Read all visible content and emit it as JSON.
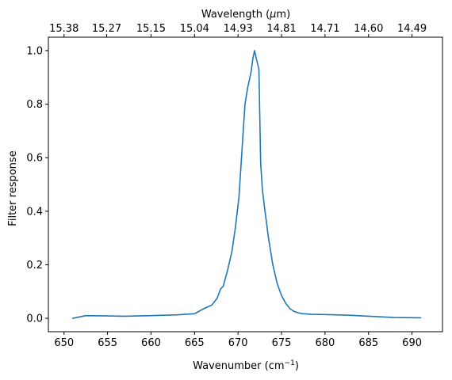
{
  "chart_data": {
    "type": "line",
    "xlabel": "Wavenumber (cm",
    "xlabel_sup": "−1",
    "xlabel_end": ")",
    "ylabel": "Filter response",
    "top_xlabel": "Wavelength (",
    "top_xlabel_mu": "μ",
    "top_xlabel_end": "m)",
    "xlim": [
      648.2,
      693.5
    ],
    "ylim": [
      -0.05,
      1.05
    ],
    "xticks": [
      650,
      655,
      660,
      665,
      670,
      675,
      680,
      685,
      690
    ],
    "yticks": [
      0.0,
      0.2,
      0.4,
      0.6,
      0.8,
      1.0
    ],
    "ytick_labels": [
      "0.0",
      "0.2",
      "0.4",
      "0.6",
      "0.8",
      "1.0"
    ],
    "top_ticks": [
      {
        "label": "15.38",
        "x": 650.0
      },
      {
        "label": "15.27",
        "x": 654.9
      },
      {
        "label": "15.15",
        "x": 660.0
      },
      {
        "label": "15.04",
        "x": 665.0
      },
      {
        "label": "14.93",
        "x": 670.0
      },
      {
        "label": "14.81",
        "x": 675.0
      },
      {
        "label": "14.71",
        "x": 680.0
      },
      {
        "label": "14.60",
        "x": 685.0
      },
      {
        "label": "14.49",
        "x": 690.0
      }
    ],
    "colors": {
      "series": "#1f77b4"
    },
    "grid": false,
    "series": [
      {
        "x": [
          651.0,
          652.5,
          655.0,
          657.0,
          660.0,
          663.0,
          665.0,
          666.0,
          667.0,
          667.6,
          668.0,
          668.3,
          668.8,
          669.3,
          669.7,
          670.1,
          670.4,
          670.8,
          671.1,
          671.5,
          671.7,
          671.9,
          672.1,
          672.4,
          672.6,
          672.8,
          673.1,
          673.5,
          674.0,
          674.5,
          675.0,
          675.5,
          676.0,
          676.5,
          677.0,
          677.5,
          678.0,
          678.5,
          680.0,
          682.5,
          685.0,
          688.0,
          691.0
        ],
        "y": [
          0.0,
          0.01,
          0.009,
          0.008,
          0.01,
          0.013,
          0.017,
          0.035,
          0.05,
          0.075,
          0.11,
          0.12,
          0.18,
          0.25,
          0.34,
          0.45,
          0.6,
          0.8,
          0.86,
          0.92,
          0.97,
          1.0,
          0.97,
          0.93,
          0.58,
          0.48,
          0.4,
          0.3,
          0.2,
          0.13,
          0.085,
          0.055,
          0.035,
          0.025,
          0.02,
          0.017,
          0.016,
          0.015,
          0.014,
          0.012,
          0.008,
          0.003,
          0.002
        ]
      }
    ]
  }
}
